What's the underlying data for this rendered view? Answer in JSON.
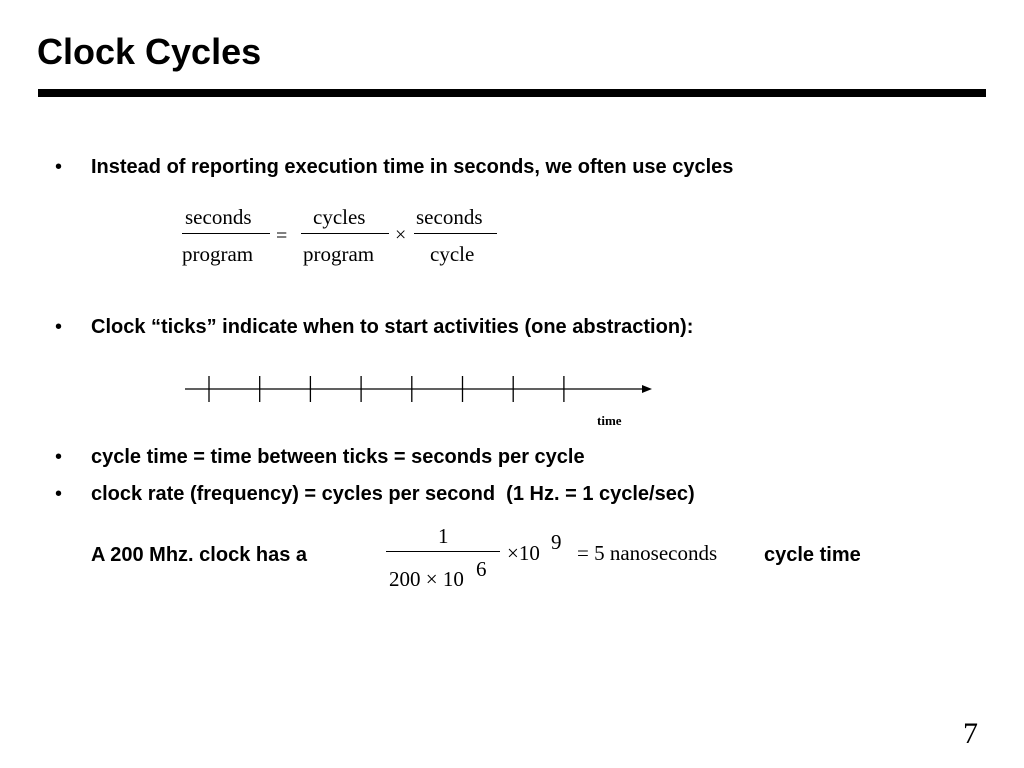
{
  "slide": {
    "title": "Clock Cycles",
    "page_number": "7"
  },
  "bullets": {
    "marker": "•",
    "b1": "Instead of reporting execution time in seconds, we often use cycles",
    "b2": "Clock “ticks” indicate when to start activities (one abstraction):",
    "b3": "cycle time = time between ticks = seconds per cycle",
    "b4": "clock rate (frequency) = cycles per second  (1 Hz. = 1 cycle/sec)"
  },
  "equation1": {
    "lhs_num": "seconds",
    "lhs_den": "program",
    "equals": "=",
    "mid_num": "cycles",
    "mid_den": "program",
    "times": "×",
    "rhs_num": "seconds",
    "rhs_den": "cycle"
  },
  "timeline": {
    "label": "time",
    "tick_count": 8
  },
  "example": {
    "prefix": "A 200 Mhz. clock has a",
    "frac_num": "1",
    "frac_den": "200 × 10",
    "frac_den_exp": "6",
    "times_base": "×10",
    "times_exp": "9",
    "result": "= 5 nanoseconds",
    "suffix": "cycle time"
  }
}
